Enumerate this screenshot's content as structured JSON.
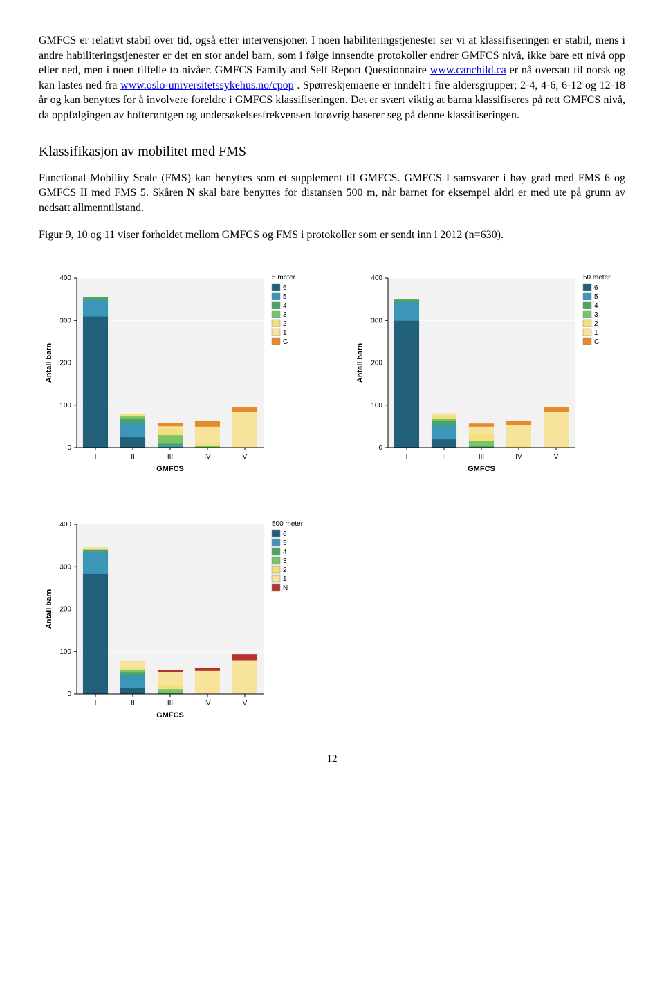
{
  "paragraphs": {
    "p1a": "GMFCS er relativt stabil over tid, også etter intervensjoner. I noen habiliteringstjenester ser vi at klassifiseringen er stabil, mens i andre habiliteringstjenester er det en stor andel barn, som i følge innsendte protokoller endrer GMFCS nivå, ikke bare ett nivå opp eller ned, men i noen tilfelle to nivåer. GMFCS Family and Self Report Questionnaire ",
    "link1": "www.canchild.ca",
    "p1b": " er nå oversatt til norsk og kan lastes ned fra ",
    "link2": "www.oslo-universitetssykehus.no/cpop",
    "p1c": ". Spørreskjemaene er inndelt i fire aldersgrupper; 2-4, 4-6, 6-12 og 12-18 år og kan benyttes for å involvere foreldre i GMFCS klassifiseringen. Det er svært viktig at barna klassifiseres på rett GMFCS nivå, da oppfølgingen av hofterøntgen og undersøkelsesfrekvensen forøvrig baserer seg på denne klassifiseringen.",
    "h1": "Klassifikasjon av mobilitet med FMS",
    "p2a": "Functional Mobility Scale (FMS) kan benyttes som et supplement til GMFCS. GMFCS I samsvarer i høy grad med FMS 6 og GMFCS II med FMS 5. Skåren ",
    "p2bold": "N",
    "p2b": " skal bare benyttes for distansen 500 m, når barnet for eksempel aldri er med ute på grunn av nedsatt allmenntilstand.",
    "p3": "Figur 9, 10 og 11 viser forholdet mellom GMFCS og FMS i protokoller som er sendt inn i 2012 (n=630)."
  },
  "page_number": "12",
  "chart_common": {
    "ylabel": "Antall barn",
    "xlabel": "GMFCS",
    "x_categories": [
      "I",
      "II",
      "III",
      "IV",
      "V"
    ],
    "ylim": [
      0,
      400
    ],
    "ytick_step": 100,
    "bg_plot": "#f2f2f2",
    "grid_color": "#ffffff",
    "axis_color": "#000000",
    "label_fontsize": 11,
    "tick_fontsize": 10,
    "bar_gap": 0.35,
    "legend_box_stroke": "#888888",
    "colors": {
      "6": "#225f78",
      "5": "#3b96b7",
      "4": "#4aa564",
      "3": "#7ac36a",
      "2": "#f2e07b",
      "1": "#f7e39b",
      "C": "#e68a2e",
      "N": "#b8312f"
    }
  },
  "charts": [
    {
      "title": "5 meter",
      "legend_keys": [
        "6",
        "5",
        "4",
        "3",
        "2",
        "1",
        "C"
      ],
      "stacks": [
        {
          "cat": "I",
          "segments": [
            {
              "k": "6",
              "v": 310
            },
            {
              "k": "5",
              "v": 40
            },
            {
              "k": "4",
              "v": 5
            }
          ]
        },
        {
          "cat": "II",
          "segments": [
            {
              "k": "6",
              "v": 25
            },
            {
              "k": "5",
              "v": 35
            },
            {
              "k": "4",
              "v": 8
            },
            {
              "k": "3",
              "v": 6
            },
            {
              "k": "2",
              "v": 5
            }
          ]
        },
        {
          "cat": "III",
          "segments": [
            {
              "k": "5",
              "v": 4
            },
            {
              "k": "4",
              "v": 6
            },
            {
              "k": "3",
              "v": 20
            },
            {
              "k": "2",
              "v": 15
            },
            {
              "k": "1",
              "v": 6
            },
            {
              "k": "C",
              "v": 6
            }
          ]
        },
        {
          "cat": "IV",
          "segments": [
            {
              "k": "3",
              "v": 4
            },
            {
              "k": "2",
              "v": 6
            },
            {
              "k": "1",
              "v": 40
            },
            {
              "k": "C",
              "v": 12
            }
          ]
        },
        {
          "cat": "V",
          "segments": [
            {
              "k": "1",
              "v": 85
            },
            {
              "k": "C",
              "v": 10
            }
          ]
        }
      ]
    },
    {
      "title": "50 meter",
      "legend_keys": [
        "6",
        "5",
        "4",
        "3",
        "2",
        "1",
        "C"
      ],
      "stacks": [
        {
          "cat": "I",
          "segments": [
            {
              "k": "6",
              "v": 300
            },
            {
              "k": "5",
              "v": 45
            },
            {
              "k": "4",
              "v": 5
            }
          ]
        },
        {
          "cat": "II",
          "segments": [
            {
              "k": "6",
              "v": 20
            },
            {
              "k": "5",
              "v": 35
            },
            {
              "k": "4",
              "v": 8
            },
            {
              "k": "3",
              "v": 6
            },
            {
              "k": "2",
              "v": 6
            },
            {
              "k": "1",
              "v": 5
            }
          ]
        },
        {
          "cat": "III",
          "segments": [
            {
              "k": "4",
              "v": 5
            },
            {
              "k": "3",
              "v": 12
            },
            {
              "k": "2",
              "v": 15
            },
            {
              "k": "1",
              "v": 18
            },
            {
              "k": "C",
              "v": 6
            }
          ]
        },
        {
          "cat": "IV",
          "segments": [
            {
              "k": "2",
              "v": 4
            },
            {
              "k": "1",
              "v": 50
            },
            {
              "k": "C",
              "v": 8
            }
          ]
        },
        {
          "cat": "V",
          "segments": [
            {
              "k": "1",
              "v": 85
            },
            {
              "k": "C",
              "v": 10
            }
          ]
        }
      ]
    },
    {
      "title": "500 meter",
      "legend_keys": [
        "6",
        "5",
        "4",
        "3",
        "2",
        "1",
        "N"
      ],
      "stacks": [
        {
          "cat": "I",
          "segments": [
            {
              "k": "6",
              "v": 285
            },
            {
              "k": "5",
              "v": 50
            },
            {
              "k": "4",
              "v": 6
            },
            {
              "k": "1",
              "v": 6
            }
          ]
        },
        {
          "cat": "II",
          "segments": [
            {
              "k": "6",
              "v": 15
            },
            {
              "k": "5",
              "v": 30
            },
            {
              "k": "4",
              "v": 6
            },
            {
              "k": "3",
              "v": 6
            },
            {
              "k": "2",
              "v": 6
            },
            {
              "k": "1",
              "v": 15
            }
          ]
        },
        {
          "cat": "III",
          "segments": [
            {
              "k": "4",
              "v": 4
            },
            {
              "k": "3",
              "v": 8
            },
            {
              "k": "2",
              "v": 10
            },
            {
              "k": "1",
              "v": 30
            },
            {
              "k": "N",
              "v": 4
            }
          ]
        },
        {
          "cat": "IV",
          "segments": [
            {
              "k": "1",
              "v": 55
            },
            {
              "k": "N",
              "v": 6
            }
          ]
        },
        {
          "cat": "V",
          "segments": [
            {
              "k": "1",
              "v": 80
            },
            {
              "k": "N",
              "v": 12
            }
          ]
        }
      ]
    }
  ]
}
